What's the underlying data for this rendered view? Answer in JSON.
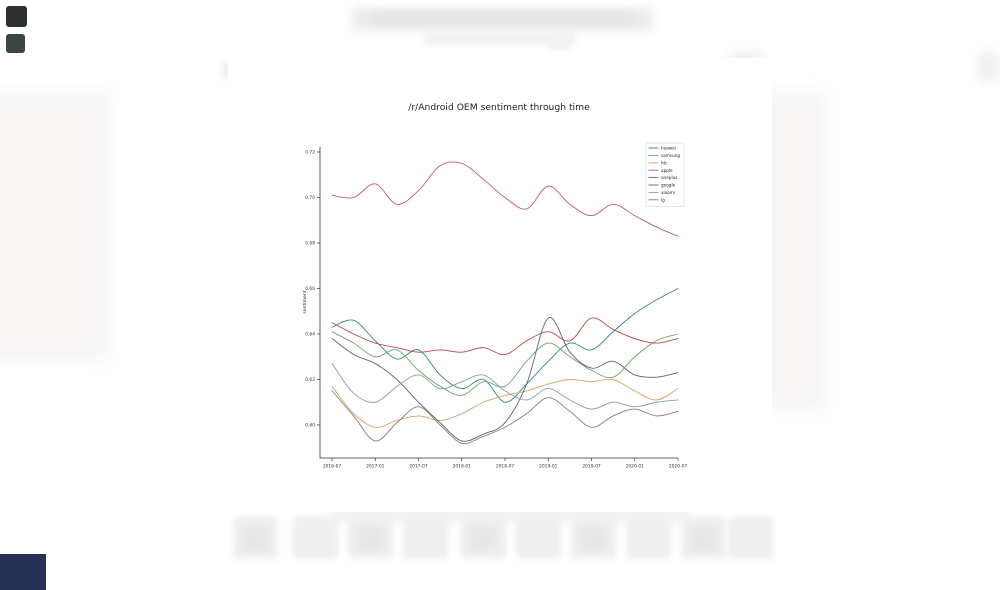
{
  "figure": {
    "title": "/r/Android OEM sentiment through time",
    "ylabel": "sentiment"
  },
  "accent_colors": {
    "top_left_icon": "#2a322c",
    "bottom_left_block": "#263155",
    "axis_color": "#333333",
    "legend_border": "#cccccc"
  },
  "chart_data": {
    "type": "line",
    "title": "/r/Android OEM sentiment through time",
    "xlabel": "",
    "ylabel": "sentiment",
    "x": [
      "2016-07",
      "2016-10",
      "2017-01",
      "2017-04",
      "2017-07",
      "2017-10",
      "2018-01",
      "2018-04",
      "2018-07",
      "2018-10",
      "2019-01",
      "2019-04",
      "2019-07",
      "2019-10",
      "2020-01",
      "2020-04",
      "2020-07"
    ],
    "x_tick_labels": [
      "2016-07",
      "2017-01",
      "2017-07",
      "2018-01",
      "2018-07",
      "2019-01",
      "2019-07",
      "2020-01",
      "2020-07"
    ],
    "y_ticks": [
      0.6,
      0.62,
      0.64,
      0.66,
      0.68,
      0.7,
      0.72
    ],
    "ylim": [
      0.5855,
      0.7255
    ],
    "grid": false,
    "legend_position": "upper right",
    "series": [
      {
        "name": "huawei",
        "color": "#2a8a7d",
        "values": [
          0.643,
          0.646,
          0.637,
          0.629,
          0.633,
          0.622,
          0.616,
          0.62,
          0.61,
          0.618,
          0.628,
          0.636,
          0.633,
          0.641,
          0.649,
          0.655,
          0.66
        ]
      },
      {
        "name": "samsung",
        "color": "#74a567",
        "values": [
          0.641,
          0.636,
          0.63,
          0.633,
          0.624,
          0.617,
          0.613,
          0.619,
          0.617,
          0.628,
          0.636,
          0.63,
          0.624,
          0.621,
          0.63,
          0.637,
          0.64
        ]
      },
      {
        "name": "htc",
        "color": "#d3a55a",
        "values": [
          0.617,
          0.605,
          0.599,
          0.602,
          0.604,
          0.602,
          0.605,
          0.61,
          0.613,
          0.615,
          0.618,
          0.62,
          0.619,
          0.62,
          0.615,
          0.611,
          0.616
        ]
      },
      {
        "name": "apple",
        "color": "#c2596b",
        "values": [
          0.701,
          0.7,
          0.706,
          0.697,
          0.703,
          0.714,
          0.715,
          0.708,
          0.7,
          0.695,
          0.705,
          0.697,
          0.692,
          0.697,
          0.692,
          0.687,
          0.683
        ]
      },
      {
        "name": "oneplus",
        "color": "#b94a4a",
        "values": [
          0.645,
          0.64,
          0.636,
          0.634,
          0.632,
          0.633,
          0.632,
          0.634,
          0.631,
          0.637,
          0.641,
          0.637,
          0.647,
          0.642,
          0.638,
          0.636,
          0.638
        ]
      },
      {
        "name": "google",
        "color": "#5d6470",
        "values": [
          0.638,
          0.631,
          0.627,
          0.62,
          0.61,
          0.601,
          0.593,
          0.596,
          0.601,
          0.618,
          0.647,
          0.632,
          0.625,
          0.628,
          0.622,
          0.621,
          0.623
        ]
      },
      {
        "name": "xiaomi",
        "color": "#87a19f",
        "values": [
          0.627,
          0.614,
          0.61,
          0.617,
          0.622,
          0.616,
          0.619,
          0.622,
          0.615,
          0.611,
          0.616,
          0.611,
          0.607,
          0.61,
          0.608,
          0.61,
          0.611
        ]
      },
      {
        "name": "lg",
        "color": "#8e7c72",
        "values": [
          0.615,
          0.604,
          0.593,
          0.601,
          0.608,
          0.6,
          0.592,
          0.595,
          0.599,
          0.605,
          0.612,
          0.606,
          0.599,
          0.604,
          0.607,
          0.604,
          0.606
        ]
      }
    ]
  }
}
